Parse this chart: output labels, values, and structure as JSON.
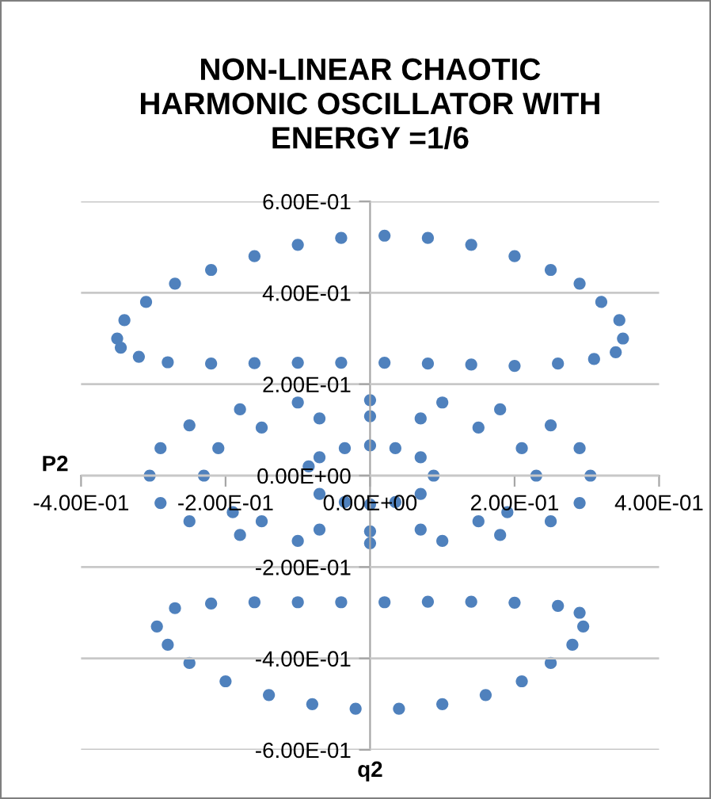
{
  "chart_data": {
    "type": "scatter",
    "title": "NON-LINEAR CHAOTIC\nHARMONIC OSCILLATOR WITH\nENERGY =1/6",
    "xlabel": "q2",
    "ylabel": "P2",
    "xlim": [
      -0.4,
      0.4
    ],
    "ylim": [
      -0.6,
      0.6
    ],
    "xticks": [
      {
        "value": -0.4,
        "label": "-4.00E-01"
      },
      {
        "value": -0.2,
        "label": "-2.00E-01"
      },
      {
        "value": 0,
        "label": "0.00E+00"
      },
      {
        "value": 0.2,
        "label": "2.00E-01"
      },
      {
        "value": 0.4,
        "label": "4.00E-01"
      }
    ],
    "yticks": [
      {
        "value": -0.6,
        "label": "-6.00E-01"
      },
      {
        "value": -0.4,
        "label": "-4.00E-01"
      },
      {
        "value": -0.2,
        "label": "-2.00E-01"
      },
      {
        "value": 0,
        "label": "0.00E+00"
      },
      {
        "value": 0.2,
        "label": "2.00E-01"
      },
      {
        "value": 0.4,
        "label": "4.00E-01"
      },
      {
        "value": 0.6,
        "label": "6.00E-01"
      }
    ],
    "grid": "y",
    "marker": "circle",
    "legend": false,
    "series": [
      {
        "color": "#4f81bd",
        "x": [
          -0.35,
          -0.34,
          -0.31,
          -0.27,
          -0.22,
          -0.16,
          -0.1,
          -0.04,
          0.02,
          0.08,
          0.14,
          0.2,
          0.25,
          0.29,
          0.32,
          0.345,
          0.35,
          0.34,
          0.31,
          0.26,
          0.2,
          0.14,
          0.08,
          0.02,
          -0.04,
          -0.1,
          -0.16,
          -0.22,
          -0.28,
          -0.32,
          -0.345,
          -0.295,
          -0.28,
          -0.25,
          -0.2,
          -0.14,
          -0.08,
          -0.02,
          0.04,
          0.1,
          0.16,
          0.21,
          0.25,
          0.28,
          0.295,
          0.29,
          0.26,
          0.2,
          0.14,
          0.08,
          0.02,
          -0.04,
          -0.1,
          -0.16,
          -0.22,
          -0.27,
          -0.305,
          -0.29,
          -0.25,
          -0.18,
          -0.1,
          0,
          0.1,
          0.18,
          0.25,
          0.29,
          0.305,
          0.29,
          0.25,
          0.18,
          0.1,
          0,
          -0.1,
          -0.18,
          -0.25,
          -0.29,
          -0.23,
          -0.21,
          -0.15,
          -0.07,
          0,
          0.07,
          0.15,
          0.21,
          0.23,
          0.19,
          0.15,
          0.07,
          0,
          -0.07,
          -0.15,
          -0.19,
          -0.085,
          -0.07,
          -0.035,
          0,
          0.035,
          0.07,
          0.088,
          0.07,
          0.035,
          0,
          -0.035,
          -0.07
        ],
        "values": [
          0.3,
          0.34,
          0.38,
          0.42,
          0.45,
          0.48,
          0.505,
          0.52,
          0.525,
          0.52,
          0.505,
          0.48,
          0.45,
          0.42,
          0.38,
          0.34,
          0.3,
          0.27,
          0.255,
          0.245,
          0.24,
          0.243,
          0.245,
          0.247,
          0.247,
          0.247,
          0.246,
          0.245,
          0.248,
          0.26,
          0.28,
          -0.33,
          -0.37,
          -0.41,
          -0.45,
          -0.48,
          -0.5,
          -0.51,
          -0.51,
          -0.5,
          -0.48,
          -0.45,
          -0.41,
          -0.37,
          -0.33,
          -0.3,
          -0.285,
          -0.278,
          -0.276,
          -0.276,
          -0.277,
          -0.277,
          -0.277,
          -0.277,
          -0.28,
          -0.29,
          0.0,
          0.06,
          0.11,
          0.145,
          0.16,
          0.165,
          0.16,
          0.145,
          0.11,
          0.06,
          0.0,
          -0.06,
          -0.1,
          -0.13,
          -0.143,
          -0.148,
          -0.143,
          -0.13,
          -0.1,
          -0.06,
          0,
          0.06,
          0.105,
          0.125,
          0.13,
          0.125,
          0.105,
          0.06,
          0,
          -0.08,
          -0.1,
          -0.118,
          -0.122,
          -0.118,
          -0.1,
          -0.08,
          0.02,
          0.04,
          0.06,
          0.066,
          0.06,
          0.04,
          0,
          -0.04,
          -0.058,
          -0.063,
          -0.058,
          -0.04
        ]
      }
    ]
  }
}
